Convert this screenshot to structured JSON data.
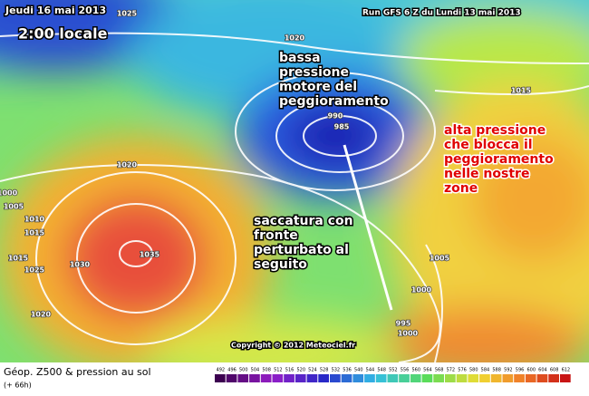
{
  "header": {
    "date": "Jeudi 16 mai 2013",
    "time": "2:00 locale",
    "run": "Run GFS 6 Z du Lundi 13 mai 2013"
  },
  "annotations": [
    {
      "lines": [
        "bassa",
        "pressione",
        "motore del",
        "peggioramento"
      ]
    },
    {
      "lines": [
        "saccatura con",
        "fronte",
        "perturbato al",
        "seguito"
      ]
    },
    {
      "lines": [
        "alta pressione",
        "che blocca il",
        "peggioramento",
        "nelle nostre",
        "zone"
      ]
    }
  ],
  "isobar_labels": [
    "1025",
    "1020",
    "1015",
    "990",
    "985",
    "1020",
    "1000",
    "1005",
    "1010",
    "1015",
    "1015",
    "1035",
    "1030",
    "1025",
    "1020",
    "1005",
    "1000",
    "995",
    "1000"
  ],
  "copyright": "Copyright © 2012 Meteociel.fr",
  "footer": {
    "title": "Géop. Z500 & pression au sol",
    "subtitle": "(+ 66h)"
  },
  "colorbar": {
    "ticks": [
      492,
      496,
      500,
      504,
      508,
      512,
      516,
      520,
      524,
      528,
      532,
      536,
      540,
      544,
      548,
      552,
      556,
      560,
      564,
      568,
      572,
      576,
      580,
      584,
      588,
      592,
      596,
      600,
      604,
      608,
      612
    ]
  }
}
